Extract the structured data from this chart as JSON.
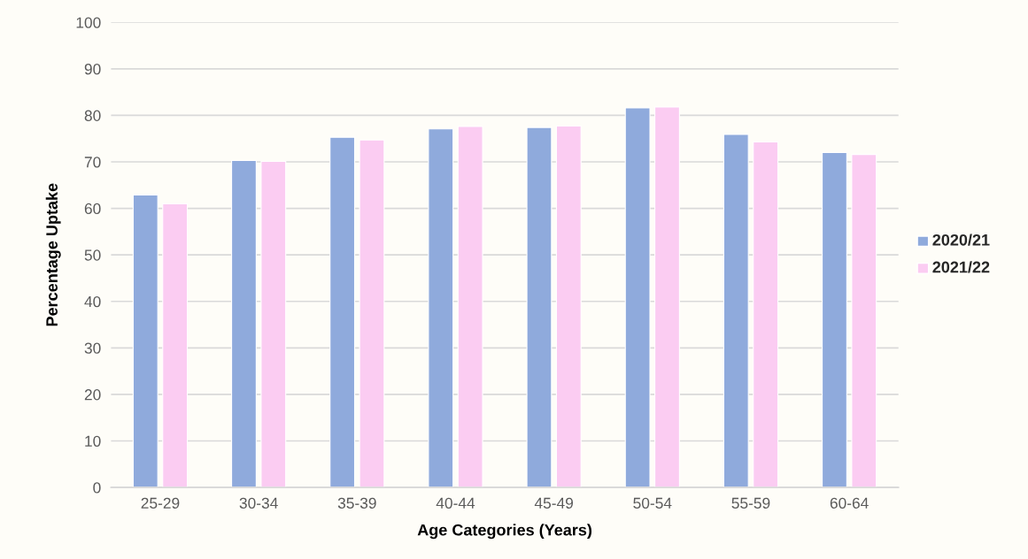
{
  "chart_data": {
    "type": "bar",
    "xlabel": "Age Categories (Years)",
    "ylabel": "Percentage Uptake",
    "categories": [
      "25-29",
      "30-34",
      "35-39",
      "40-44",
      "45-49",
      "50-54",
      "55-59",
      "60-64"
    ],
    "series": [
      {
        "name": "2020/21",
        "color": "#8faadc",
        "values": [
          62.9,
          70.3,
          75.3,
          77.1,
          77.4,
          81.6,
          75.9,
          72.0
        ]
      },
      {
        "name": "2021/22",
        "color": "#fbccf2",
        "values": [
          61.0,
          70.1,
          74.7,
          77.6,
          77.7,
          81.8,
          74.3,
          71.6
        ]
      }
    ],
    "ylim": [
      0,
      100
    ],
    "yticks": [
      0,
      10,
      20,
      30,
      40,
      50,
      60,
      70,
      80,
      90,
      100
    ],
    "grid": "y",
    "legend": "right"
  }
}
